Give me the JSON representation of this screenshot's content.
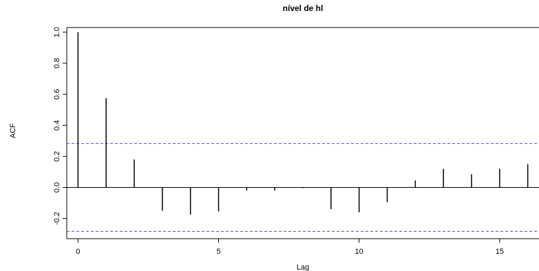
{
  "chart_data": {
    "type": "bar",
    "title": "nível de hl",
    "xlabel": "Lag",
    "ylabel": "ACF",
    "xlim": [
      -0.4,
      16.4
    ],
    "ylim": [
      -0.33,
      1.03
    ],
    "x_ticks": [
      0,
      5,
      10,
      15
    ],
    "x_tick_labels": [
      "0",
      "5",
      "10",
      "15"
    ],
    "y_ticks": [
      -0.2,
      0.0,
      0.2,
      0.4,
      0.6,
      0.8,
      1.0
    ],
    "y_tick_labels": [
      "-0.2",
      "0.0",
      "0.2",
      "0.4",
      "0.6",
      "0.8",
      "1.0"
    ],
    "grid": false,
    "lags": [
      0,
      1,
      2,
      3,
      4,
      5,
      6,
      7,
      8,
      9,
      10,
      11,
      12,
      13,
      14,
      15,
      16
    ],
    "values": [
      1.0,
      0.575,
      0.18,
      -0.15,
      -0.175,
      -0.155,
      -0.02,
      -0.02,
      -0.005,
      -0.14,
      -0.16,
      -0.095,
      0.045,
      0.12,
      0.085,
      0.12,
      0.15
    ],
    "confidence_band": [
      0.283,
      -0.283
    ],
    "colors": {
      "bars": "#000000",
      "band": "#4a4ae0",
      "axis": "#000000"
    }
  }
}
